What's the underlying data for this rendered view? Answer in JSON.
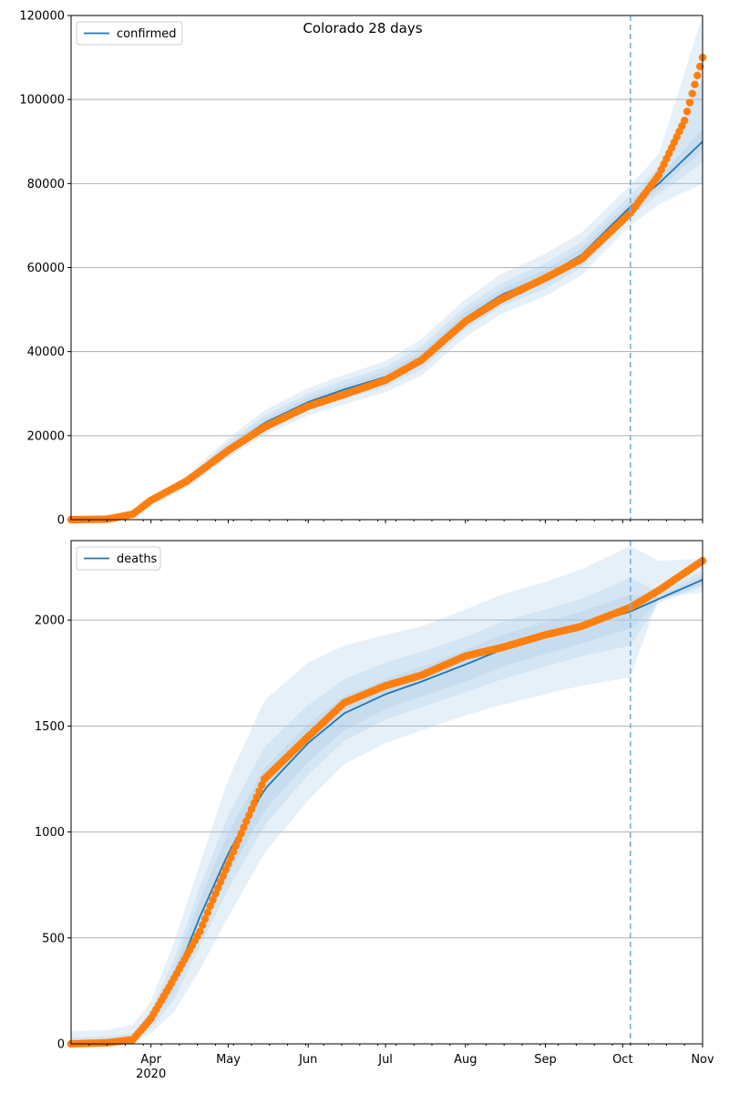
{
  "title": "Colorado 28 days",
  "colors": {
    "model": "#1f77b4",
    "observed": "#ff7f0e",
    "band": "#a6c8e6",
    "grid": "#b0b0b0",
    "forecast_line": "#7fb0d6"
  },
  "chart_data": [
    {
      "type": "line",
      "name": "confirmed",
      "legend": "confirmed",
      "legend_position": "top-left",
      "grid": "horizontal",
      "x_range": [
        "2020-03-01",
        "2020-11-01"
      ],
      "ylim": [
        0,
        120000
      ],
      "yticks": [
        0,
        20000,
        40000,
        60000,
        80000,
        100000,
        120000
      ],
      "forecast_start": "2020-10-04",
      "model": {
        "x": [
          "2020-03-01",
          "2020-03-15",
          "2020-03-25",
          "2020-04-01",
          "2020-04-15",
          "2020-05-01",
          "2020-05-15",
          "2020-06-01",
          "2020-06-15",
          "2020-07-01",
          "2020-07-15",
          "2020-08-01",
          "2020-08-15",
          "2020-09-01",
          "2020-09-15",
          "2020-10-04",
          "2020-10-15",
          "2020-11-01"
        ],
        "y": [
          0,
          100,
          1000,
          4000,
          9000,
          17000,
          23000,
          28000,
          31000,
          34000,
          38500,
          48000,
          53500,
          58000,
          63000,
          74500,
          80000,
          90000
        ],
        "bands": [
          {
            "lower": [
              0,
              50,
              700,
              3400,
              7600,
              14800,
              20200,
              24800,
              27500,
              30300,
              34300,
              43500,
              49000,
              53200,
              58200,
              70000,
              75000,
              80000
            ],
            "upper": [
              0,
              150,
              1300,
              4700,
              10600,
              19400,
              26000,
              31300,
              34500,
              37700,
              43000,
              52500,
              58500,
              63300,
              68300,
              79600,
              87000,
              120000
            ]
          },
          {
            "lower": [
              0,
              70,
              800,
              3600,
              8200,
              15600,
              21300,
              26000,
              28800,
              31600,
              35800,
              45300,
              50800,
              55000,
              60000,
              72000,
              77500,
              85000
            ],
            "upper": [
              0,
              130,
              1200,
              4400,
              10000,
              18500,
              24800,
              30000,
              33200,
              36300,
              41300,
              50700,
              56300,
              61000,
              66000,
              77300,
              84000,
              105000
            ]
          },
          {
            "lower": [
              0,
              85,
              900,
              3800,
              8600,
              16300,
              22100,
              27000,
              29900,
              32800,
              37100,
              46600,
              52100,
              56500,
              61500,
              73200,
              78700,
              88000
            ],
            "upper": [
              0,
              115,
              1100,
              4200,
              9400,
              17700,
              23900,
              29000,
              32100,
              35200,
              39900,
              49400,
              54900,
              59500,
              64500,
              75800,
              81300,
              93000
            ]
          }
        ]
      },
      "observed": {
        "x": [
          "2020-03-01",
          "2020-03-15",
          "2020-03-25",
          "2020-04-01",
          "2020-04-15",
          "2020-05-01",
          "2020-05-15",
          "2020-06-01",
          "2020-06-15",
          "2020-07-01",
          "2020-07-15",
          "2020-08-01",
          "2020-08-15",
          "2020-09-01",
          "2020-09-15",
          "2020-10-04",
          "2020-10-15",
          "2020-10-25",
          "2020-11-01"
        ],
        "y": [
          0,
          100,
          1300,
          4600,
          9200,
          16500,
          22000,
          27000,
          29800,
          33200,
          38000,
          47200,
          52500,
          57500,
          62000,
          73000,
          82000,
          95000,
          110000
        ]
      }
    },
    {
      "type": "line",
      "name": "deaths",
      "legend": "deaths",
      "legend_position": "top-left",
      "grid": "horizontal",
      "x_range": [
        "2020-03-01",
        "2020-11-01"
      ],
      "ylim": [
        0,
        2375
      ],
      "yticks": [
        0,
        500,
        1000,
        1500,
        2000
      ],
      "forecast_start": "2020-10-04",
      "xticks": [
        {
          "date": "2020-04-01",
          "label": "Apr",
          "sublabel": "2020"
        },
        {
          "date": "2020-05-01",
          "label": "May"
        },
        {
          "date": "2020-06-01",
          "label": "Jun"
        },
        {
          "date": "2020-07-01",
          "label": "Jul"
        },
        {
          "date": "2020-08-01",
          "label": "Aug"
        },
        {
          "date": "2020-09-01",
          "label": "Sep"
        },
        {
          "date": "2020-10-01",
          "label": "Oct"
        },
        {
          "date": "2020-11-01",
          "label": "Nov"
        }
      ],
      "model": {
        "x": [
          "2020-03-01",
          "2020-03-15",
          "2020-03-25",
          "2020-04-01",
          "2020-04-10",
          "2020-04-20",
          "2020-05-01",
          "2020-05-15",
          "2020-06-01",
          "2020-06-15",
          "2020-07-01",
          "2020-07-15",
          "2020-08-01",
          "2020-08-15",
          "2020-09-01",
          "2020-09-15",
          "2020-10-04",
          "2020-10-15",
          "2020-11-01"
        ],
        "y": [
          0,
          5,
          25,
          110,
          300,
          600,
          900,
          1200,
          1420,
          1560,
          1650,
          1710,
          1790,
          1860,
          1920,
          1970,
          2040,
          2100,
          2190
        ],
        "bands": [
          {
            "lower": [
              0,
              0,
              5,
              50,
              150,
              350,
              600,
              900,
              1150,
              1320,
              1420,
              1480,
              1550,
              1600,
              1650,
              1690,
              1730,
              2110,
              2130
            ],
            "upper": [
              60,
              65,
              90,
              200,
              480,
              850,
              1250,
              1620,
              1800,
              1880,
              1930,
              1970,
              2050,
              2120,
              2180,
              2240,
              2350,
              2280,
              2290
            ]
          },
          {
            "lower": [
              0,
              2,
              12,
              75,
              210,
              460,
              730,
              1030,
              1270,
              1430,
              1530,
              1590,
              1660,
              1720,
              1780,
              1830,
              1880,
              2080,
              2160
            ],
            "upper": [
              30,
              35,
              50,
              155,
              400,
              740,
              1080,
              1400,
              1600,
              1720,
              1800,
              1850,
              1920,
              1990,
              2050,
              2100,
              2200,
              2130,
              2230
            ]
          },
          {
            "lower": [
              0,
              3,
              18,
              90,
              250,
              520,
              800,
              1100,
              1330,
              1480,
              1580,
              1640,
              1710,
              1780,
              1840,
              1890,
              1960,
              2090,
              2170
            ],
            "upper": [
              15,
              15,
              35,
              135,
              350,
              680,
              1000,
              1300,
              1510,
              1640,
              1720,
              1780,
              1860,
              1930,
              1990,
              2040,
              2120,
              2110,
              2210
            ]
          }
        ]
      },
      "observed": {
        "x": [
          "2020-03-01",
          "2020-03-15",
          "2020-03-25",
          "2020-04-01",
          "2020-04-10",
          "2020-04-20",
          "2020-04-25",
          "2020-05-01",
          "2020-05-15",
          "2020-06-01",
          "2020-06-15",
          "2020-07-01",
          "2020-07-15",
          "2020-08-01",
          "2020-08-15",
          "2020-09-01",
          "2020-09-15",
          "2020-10-04",
          "2020-10-15",
          "2020-11-01"
        ],
        "y": [
          0,
          5,
          20,
          120,
          310,
          530,
          680,
          850,
          1250,
          1450,
          1610,
          1690,
          1740,
          1830,
          1870,
          1930,
          1970,
          2060,
          2140,
          2280
        ]
      }
    }
  ]
}
